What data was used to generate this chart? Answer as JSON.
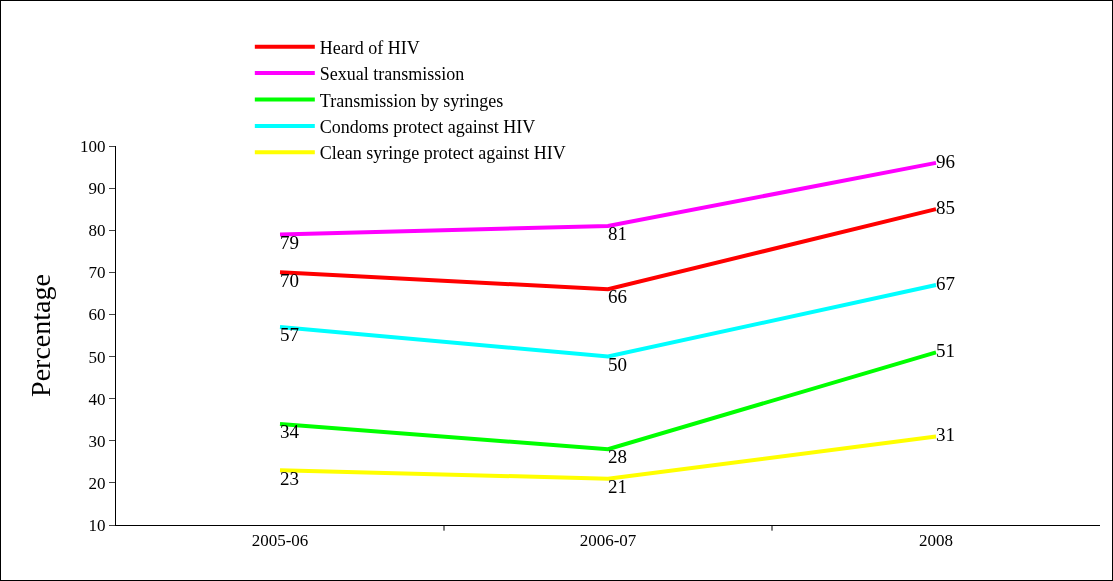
{
  "chart_data": {
    "type": "line",
    "ylabel": "Percentage",
    "categories": [
      "2005-06",
      "2006-07",
      "2008"
    ],
    "series": [
      {
        "name": "Heard of HIV",
        "color": "#ff0000",
        "values": [
          70,
          66,
          85
        ]
      },
      {
        "name": "Sexual transmission",
        "color": "#ff00ff",
        "values": [
          79,
          81,
          96
        ]
      },
      {
        "name": "Transmission by syringes",
        "color": "#00ff00",
        "values": [
          34,
          28,
          51
        ]
      },
      {
        "name": "Condoms protect against HIV",
        "color": "#00ffff",
        "values": [
          57,
          50,
          67
        ]
      },
      {
        "name": "Clean syringe protect against HIV",
        "color": "#ffff00",
        "values": [
          23,
          21,
          31
        ]
      }
    ],
    "ylim": [
      10,
      100
    ],
    "yticks": [
      10,
      20,
      30,
      40,
      50,
      60,
      70,
      80,
      90,
      100
    ],
    "grid": false,
    "legend": "top left",
    "marker": "none",
    "line_style": "solid",
    "data_labels": true
  }
}
